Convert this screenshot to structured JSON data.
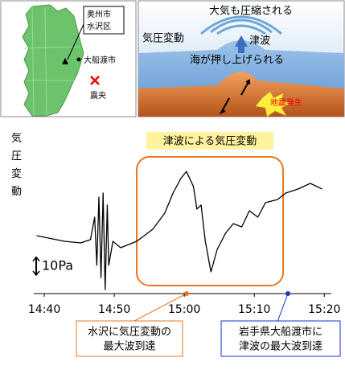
{
  "map": {
    "labels": {
      "oshu": [
        "奥州市",
        "水沢区"
      ],
      "ofunato": "大船渡市",
      "epicenter": "震央"
    }
  },
  "diagram": {
    "labels": {
      "atmosphere": "大気も圧縮される",
      "pressure": "気圧変動",
      "tsunami": "津波",
      "sea": "海が押し上げられる",
      "quake": "地震発生"
    }
  },
  "chart_data": {
    "type": "line",
    "y_label": "気圧変動",
    "box_label": "津波による気圧変動",
    "scale_bar": {
      "value": 10,
      "label": "10Pa"
    },
    "annotations": [
      [
        "水沢に気圧変動の",
        "最大波到達"
      ],
      [
        "岩手県大船渡市に",
        "津波の最大波到達"
      ]
    ],
    "x": [
      878.9,
      882.9,
      885.2,
      886.6,
      887.2,
      887.5,
      887.8,
      888.1,
      888.4,
      888.7,
      889.0,
      889.2,
      889.8,
      890.9,
      893.2,
      895.5,
      897.2,
      898.4,
      899.5,
      900.3,
      901.3,
      901.8,
      902.4,
      903.0,
      903.8,
      904.7,
      905.9,
      907.0,
      908.2,
      909.3,
      910.5,
      911.6,
      913.3,
      914.5,
      916.2,
      918.0,
      919.7
    ],
    "series": [
      {
        "color": "#000000",
        "values": [
          -12.8,
          -15.9,
          -16.8,
          -15.0,
          -2.5,
          -29.3,
          8.7,
          -36.1,
          10.9,
          -42.8,
          4.2,
          -29.3,
          -15.9,
          -19.5,
          -15.9,
          -9.2,
          -0.3,
          10.9,
          19.0,
          22.9,
          14.6,
          2.0,
          4.2,
          -15.9,
          -32.9,
          -20.4,
          -11.4,
          -6.1,
          -7.9,
          1.1,
          -2.5,
          5.6,
          7.3,
          10.9,
          13.1,
          16.3,
          13.1
        ]
      }
    ],
    "xlim": [
      878.5,
      921
    ],
    "ylim": [
      -45,
      40
    ],
    "xticks": [
      {
        "value": 880,
        "label": "14:40"
      },
      {
        "value": 890,
        "label": "14:50"
      },
      {
        "value": 900,
        "label": "15:00"
      },
      {
        "value": 910,
        "label": "15:10"
      },
      {
        "value": 920,
        "label": "15:20"
      }
    ]
  }
}
